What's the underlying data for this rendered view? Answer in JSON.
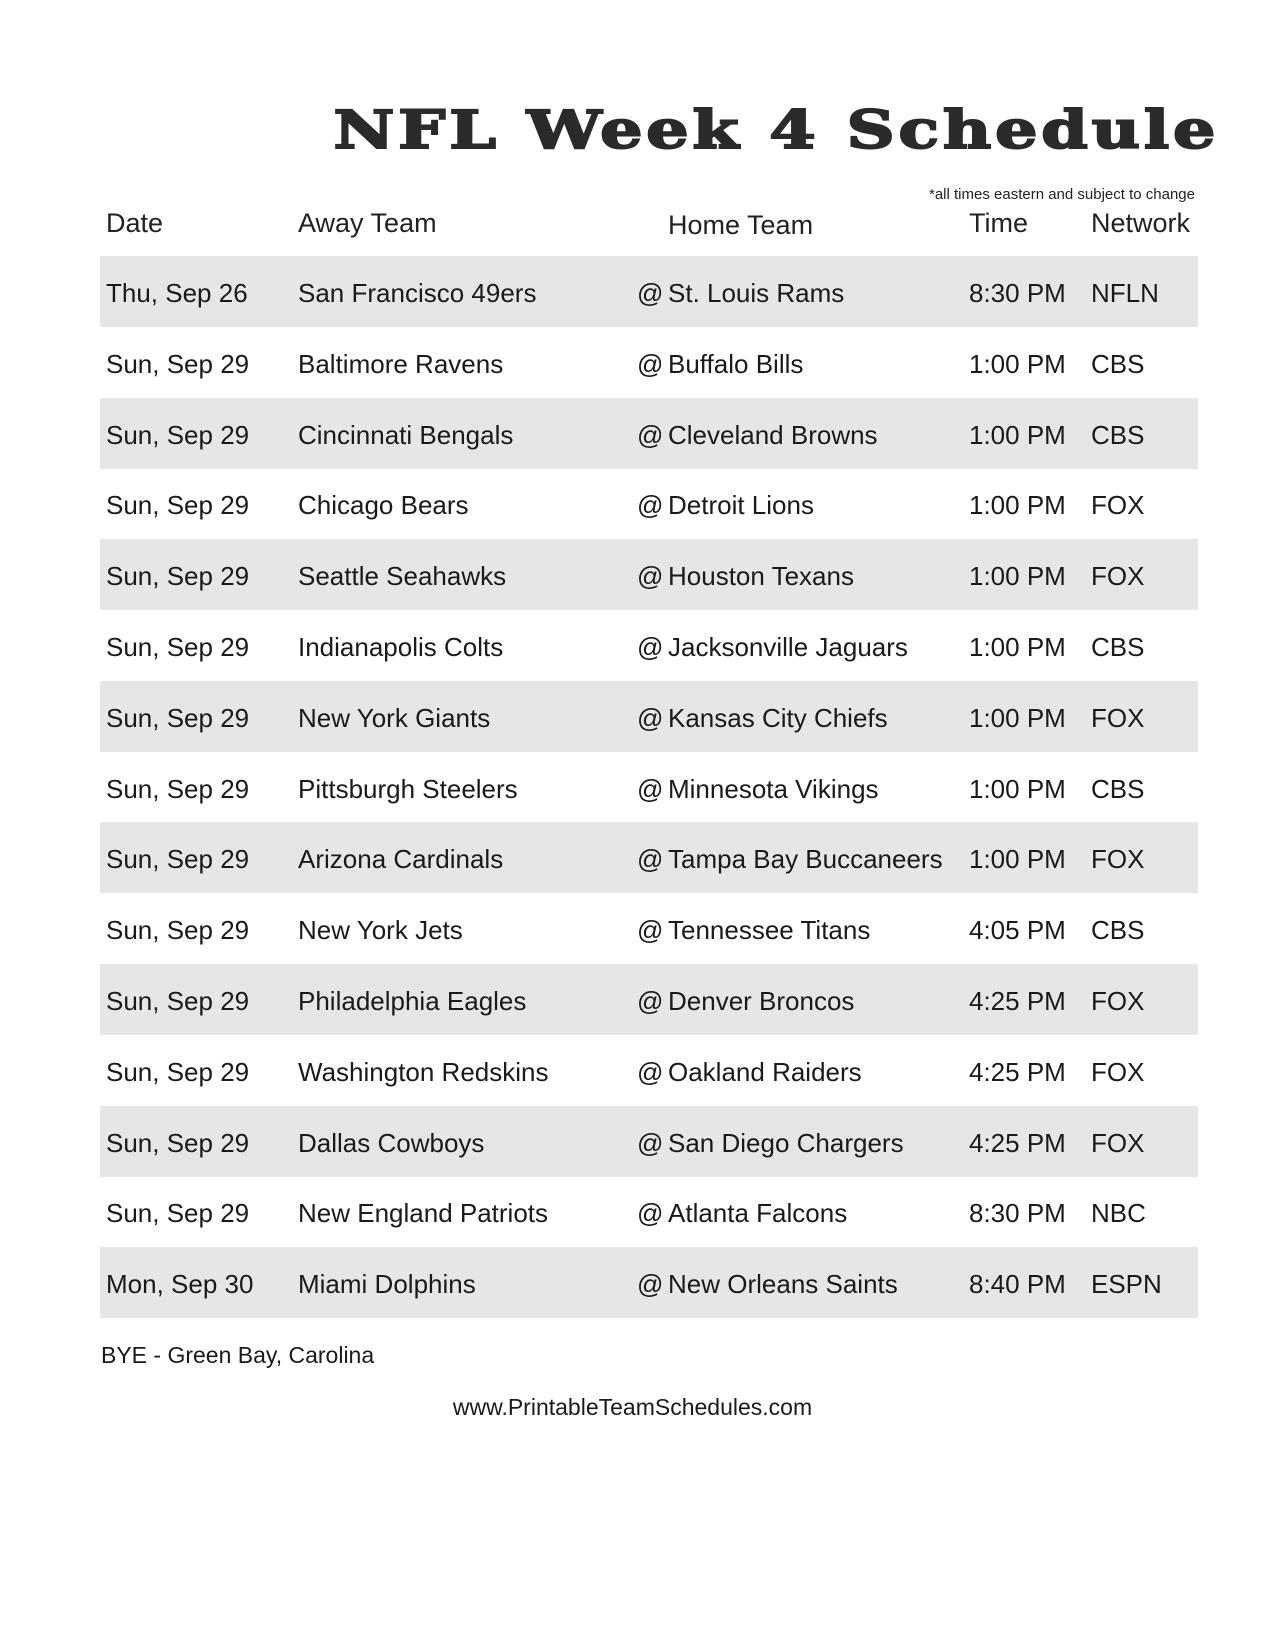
{
  "title": "NFL Week 4 Schedule",
  "note": "*all times eastern and subject to change",
  "headers": {
    "date": "Date",
    "away": "Away Team",
    "home": "Home Team",
    "time": "Time",
    "network": "Network"
  },
  "games": [
    {
      "date": "Thu, Sep 26",
      "away": "San Francisco 49ers",
      "at": "@",
      "home": "St. Louis Rams",
      "time": "8:30 PM",
      "network": "NFLN"
    },
    {
      "date": "Sun, Sep 29",
      "away": "Baltimore Ravens",
      "at": "@",
      "home": "Buffalo Bills",
      "time": "1:00 PM",
      "network": "CBS"
    },
    {
      "date": "Sun, Sep 29",
      "away": "Cincinnati Bengals",
      "at": "@",
      "home": "Cleveland Browns",
      "time": "1:00 PM",
      "network": "CBS"
    },
    {
      "date": "Sun, Sep 29",
      "away": "Chicago Bears",
      "at": "@",
      "home": "Detroit Lions",
      "time": "1:00 PM",
      "network": "FOX"
    },
    {
      "date": "Sun, Sep 29",
      "away": "Seattle Seahawks",
      "at": "@",
      "home": "Houston Texans",
      "time": "1:00 PM",
      "network": "FOX"
    },
    {
      "date": "Sun, Sep 29",
      "away": "Indianapolis Colts",
      "at": "@",
      "home": "Jacksonville Jaguars",
      "time": "1:00 PM",
      "network": "CBS"
    },
    {
      "date": "Sun, Sep 29",
      "away": "New York Giants",
      "at": "@",
      "home": "Kansas City Chiefs",
      "time": "1:00 PM",
      "network": "FOX"
    },
    {
      "date": "Sun, Sep 29",
      "away": "Pittsburgh Steelers",
      "at": "@",
      "home": "Minnesota Vikings",
      "time": "1:00 PM",
      "network": "CBS"
    },
    {
      "date": "Sun, Sep 29",
      "away": "Arizona Cardinals",
      "at": "@",
      "home": "Tampa Bay Buccaneers",
      "time": "1:00 PM",
      "network": "FOX"
    },
    {
      "date": "Sun, Sep 29",
      "away": "New York Jets",
      "at": "@",
      "home": "Tennessee Titans",
      "time": "4:05 PM",
      "network": "CBS"
    },
    {
      "date": "Sun, Sep 29",
      "away": "Philadelphia Eagles",
      "at": "@",
      "home": "Denver Broncos",
      "time": "4:25 PM",
      "network": "FOX"
    },
    {
      "date": "Sun, Sep 29",
      "away": "Washington Redskins",
      "at": "@",
      "home": "Oakland Raiders",
      "time": "4:25 PM",
      "network": "FOX"
    },
    {
      "date": "Sun, Sep 29",
      "away": "Dallas Cowboys",
      "at": "@",
      "home": "San Diego Chargers",
      "time": "4:25 PM",
      "network": "FOX"
    },
    {
      "date": "Sun, Sep 29",
      "away": "New England Patriots",
      "at": "@",
      "home": "Atlanta Falcons",
      "time": "8:30 PM",
      "network": "NBC"
    },
    {
      "date": "Mon, Sep 30",
      "away": "Miami Dolphins",
      "at": "@",
      "home": "New Orleans Saints",
      "time": "8:40 PM",
      "network": "ESPN"
    }
  ],
  "bye": "BYE - Green Bay, Carolina",
  "website": "www.PrintableTeamSchedules.com",
  "colors": {
    "row_shade": "#e6e6e6",
    "text": "#1a1a1a"
  }
}
